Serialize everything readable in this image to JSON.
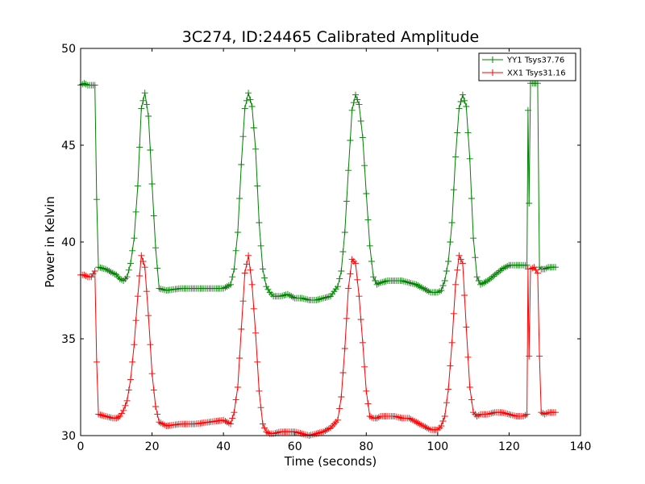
{
  "chart_data": {
    "type": "line",
    "title": "3C274, ID:24465 Calibrated Amplitude",
    "xlabel": "Time (seconds)",
    "ylabel": "Power in Kelvin",
    "xlim": [
      0,
      140
    ],
    "ylim": [
      30,
      50
    ],
    "xticks": [
      0,
      20,
      40,
      60,
      80,
      100,
      120,
      140
    ],
    "yticks": [
      30,
      35,
      40,
      45,
      50
    ],
    "xtick_labels": [
      "0",
      "20",
      "40",
      "60",
      "80",
      "100",
      "120",
      "140"
    ],
    "ytick_labels": [
      "30",
      "35",
      "40",
      "45",
      "50"
    ],
    "grid": false,
    "legend_position": "top-right",
    "marker": "+",
    "series": [
      {
        "name": "YY1 Tsys37.76",
        "color": "#008000",
        "x": [
          0,
          1,
          2,
          3,
          4,
          4.5,
          5,
          7,
          9,
          10,
          11,
          12,
          13,
          14,
          15,
          16,
          17,
          18,
          19,
          20,
          21,
          22,
          24,
          28,
          32,
          36,
          40,
          42,
          43,
          44,
          45,
          46,
          47,
          48,
          49,
          50,
          51,
          52,
          53,
          54,
          56,
          58,
          60,
          62,
          64,
          66,
          68,
          70,
          72,
          73,
          74,
          75,
          76,
          77,
          78,
          79,
          80,
          81,
          82,
          83,
          84,
          86,
          88,
          90,
          92,
          94,
          96,
          98,
          100,
          101,
          102,
          103,
          104,
          105,
          106,
          107,
          108,
          109,
          110,
          111,
          112,
          114,
          116,
          118,
          120,
          122,
          124,
          125,
          125.3,
          125.6,
          126,
          127,
          128,
          128.5,
          129,
          130,
          131,
          132,
          133
        ],
        "y": [
          48.1,
          48.2,
          48.1,
          48.1,
          48.1,
          42.2,
          38.7,
          38.6,
          38.4,
          38.3,
          38.1,
          38.0,
          38.2,
          38.9,
          40.2,
          42.9,
          46.9,
          47.7,
          46.5,
          43.0,
          39.7,
          37.6,
          37.5,
          37.6,
          37.6,
          37.6,
          37.6,
          37.8,
          38.6,
          40.5,
          44.0,
          46.9,
          47.7,
          47.0,
          44.8,
          41.0,
          38.6,
          37.7,
          37.4,
          37.2,
          37.2,
          37.3,
          37.1,
          37.1,
          37.0,
          37.0,
          37.1,
          37.2,
          37.7,
          38.5,
          40.5,
          43.7,
          46.8,
          47.6,
          47.1,
          45.4,
          42.5,
          39.8,
          38.2,
          37.8,
          37.9,
          38.0,
          38.0,
          38.0,
          37.9,
          37.8,
          37.6,
          37.4,
          37.4,
          37.5,
          38.0,
          39.0,
          41.0,
          44.4,
          46.9,
          47.6,
          47.0,
          44.3,
          40.2,
          38.2,
          37.8,
          38.0,
          38.3,
          38.6,
          38.8,
          38.8,
          38.8,
          38.8,
          46.8,
          42.0,
          48.2,
          48.2,
          48.2,
          38.7,
          38.6,
          38.6,
          38.7,
          38.7,
          38.7
        ]
      },
      {
        "name": "XX1 Tsys31.16",
        "color": "#ff0000",
        "x": [
          0,
          1,
          2,
          3,
          4,
          4.5,
          5,
          7,
          9,
          10,
          11,
          12,
          13,
          14,
          15,
          16,
          17,
          18,
          19,
          20,
          21,
          22,
          24,
          28,
          32,
          36,
          40,
          42,
          43,
          44,
          45,
          46,
          47,
          48,
          49,
          50,
          51,
          52,
          53,
          54,
          56,
          58,
          60,
          62,
          64,
          66,
          68,
          70,
          72,
          73,
          74,
          75,
          76,
          77,
          78,
          79,
          80,
          81,
          82,
          83,
          84,
          86,
          88,
          90,
          92,
          94,
          96,
          98,
          100,
          101,
          102,
          103,
          104,
          105,
          106,
          107,
          108,
          109,
          110,
          111,
          112,
          114,
          116,
          118,
          120,
          122,
          124,
          125,
          125.3,
          125.6,
          126,
          127,
          128,
          128.5,
          129,
          130,
          131,
          132,
          133
        ],
        "y": [
          38.3,
          38.3,
          38.2,
          38.2,
          38.5,
          33.8,
          31.1,
          31.0,
          30.9,
          30.9,
          31.0,
          31.3,
          31.8,
          32.9,
          34.7,
          37.2,
          39.3,
          38.7,
          36.2,
          33.2,
          31.5,
          30.7,
          30.5,
          30.6,
          30.6,
          30.7,
          30.8,
          30.6,
          31.2,
          32.5,
          35.5,
          38.4,
          39.3,
          37.8,
          35.3,
          32.3,
          30.6,
          30.2,
          30.1,
          30.1,
          30.2,
          30.2,
          30.2,
          30.1,
          30.0,
          30.1,
          30.2,
          30.4,
          30.8,
          32.0,
          34.5,
          37.6,
          39.1,
          38.9,
          37.2,
          34.8,
          32.3,
          31.0,
          30.9,
          30.9,
          31.0,
          31.0,
          31.0,
          30.9,
          30.9,
          30.7,
          30.5,
          30.3,
          30.3,
          30.5,
          31.0,
          32.4,
          34.8,
          37.8,
          39.3,
          38.9,
          35.6,
          32.5,
          31.2,
          31.0,
          31.1,
          31.1,
          31.2,
          31.2,
          31.1,
          31.0,
          31.0,
          31.1,
          38.6,
          34.1,
          38.6,
          38.7,
          38.4,
          34.1,
          31.2,
          31.1,
          31.2,
          31.2,
          31.2
        ]
      }
    ]
  }
}
